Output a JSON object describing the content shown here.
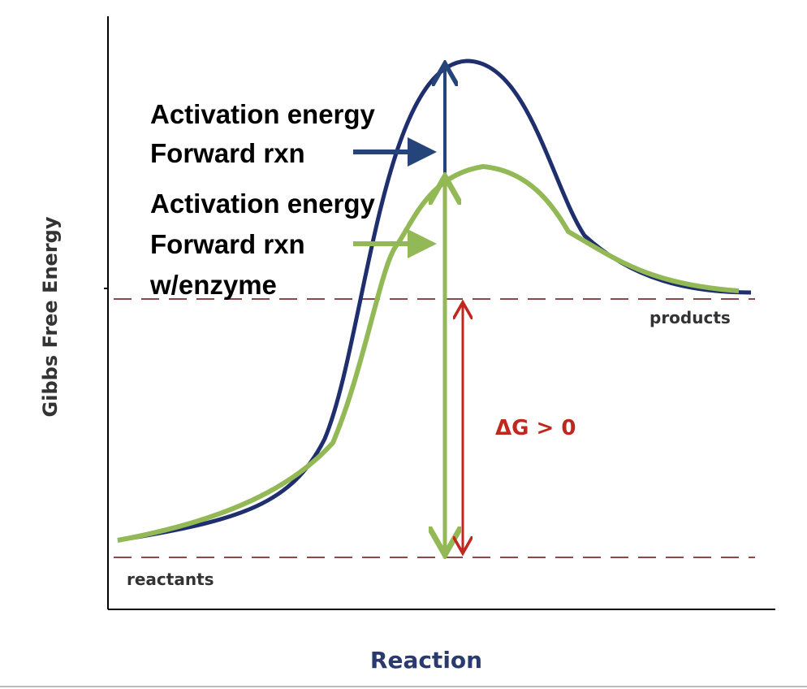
{
  "diagram": {
    "y_axis_label": "Gibbs Free Energy",
    "x_axis_label": "Reaction",
    "products_label": "products",
    "reactants_label": "reactants",
    "delta_g_label": "ΔG > 0",
    "annotations": [
      {
        "lines": [
          "Activation energy",
          "Forward rxn"
        ]
      },
      {
        "lines": [
          "Activation energy",
          "Forward rxn",
          "w/enzyme"
        ]
      }
    ]
  }
}
